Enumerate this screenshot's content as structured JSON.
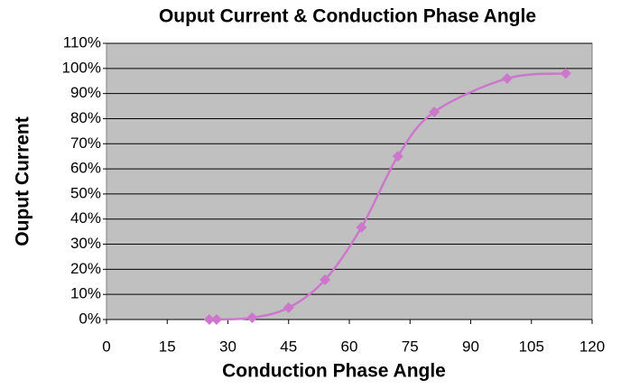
{
  "chart_data": {
    "type": "line",
    "title": "Ouput Current & Conduction Phase Angle",
    "x_label": "Conduction Phase Angle",
    "y_label": "Ouput Current",
    "x": [
      25.4,
      27.2,
      36,
      45,
      54,
      63,
      72,
      81,
      99,
      113.5
    ],
    "series": [
      {
        "name": "Ouput Current",
        "color": "#cc77cc",
        "values": [
          0,
          0,
          0.7,
          4.7,
          15.8,
          36.7,
          65,
          82.7,
          96,
          98
        ]
      }
    ],
    "xlim": [
      0,
      120
    ],
    "xticks": [
      0,
      15,
      30,
      45,
      60,
      75,
      90,
      105,
      120
    ],
    "ylim": [
      0,
      110
    ],
    "yticks": [
      {
        "value": 0,
        "label": "0%"
      },
      {
        "value": 10,
        "label": "10%"
      },
      {
        "value": 20,
        "label": "20%"
      },
      {
        "value": 30,
        "label": "30%"
      },
      {
        "value": 40,
        "label": "40%"
      },
      {
        "value": 50,
        "label": "50%"
      },
      {
        "value": 60,
        "label": "60%"
      },
      {
        "value": 70,
        "label": "70%"
      },
      {
        "value": 80,
        "label": "80%"
      },
      {
        "value": 90,
        "label": "90%"
      },
      {
        "value": 100,
        "label": "100%"
      },
      {
        "value": 110,
        "label": "110%"
      }
    ],
    "grid": true,
    "smooth": true
  }
}
